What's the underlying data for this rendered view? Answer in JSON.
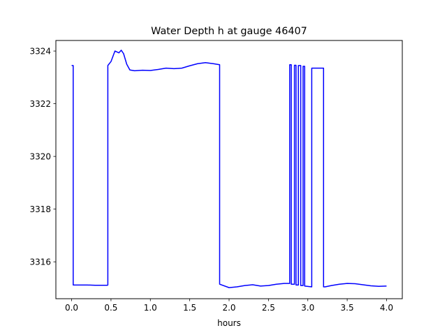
{
  "chart_data": {
    "type": "line",
    "title": "Water Depth h at gauge 46407",
    "xlabel": "hours",
    "ylabel": "",
    "xlim": [
      -0.2,
      4.2
    ],
    "ylim": [
      3314.6,
      3324.4
    ],
    "xticks": [
      0.0,
      0.5,
      1.0,
      1.5,
      2.0,
      2.5,
      3.0,
      3.5,
      4.0
    ],
    "xtick_labels": [
      "0.0",
      "0.5",
      "1.0",
      "1.5",
      "2.0",
      "2.5",
      "3.0",
      "3.5",
      "4.0"
    ],
    "yticks": [
      3316,
      3318,
      3320,
      3322,
      3324
    ],
    "ytick_labels": [
      "3316",
      "3318",
      "3320",
      "3322",
      "3324"
    ],
    "grid": false,
    "series": [
      {
        "color": "#0000ff",
        "x": [
          0.0,
          0.02,
          0.02,
          0.1,
          0.2,
          0.3,
          0.4,
          0.45,
          0.46,
          0.46,
          0.5,
          0.55,
          0.6,
          0.63,
          0.66,
          0.7,
          0.74,
          0.8,
          0.9,
          1.0,
          1.1,
          1.2,
          1.3,
          1.4,
          1.5,
          1.6,
          1.7,
          1.8,
          1.88,
          1.88,
          2.0,
          2.1,
          2.2,
          2.3,
          2.4,
          2.5,
          2.6,
          2.7,
          2.77,
          2.77,
          2.79,
          2.79,
          2.83,
          2.83,
          2.85,
          2.85,
          2.88,
          2.88,
          2.91,
          2.91,
          2.94,
          2.94,
          2.96,
          2.96,
          3.05,
          3.05,
          3.2,
          3.2,
          3.22,
          3.3,
          3.4,
          3.5,
          3.6,
          3.7,
          3.8,
          3.9,
          4.0
        ],
        "y": [
          3323.45,
          3323.45,
          3315.12,
          3315.12,
          3315.12,
          3315.11,
          3315.11,
          3315.11,
          3315.12,
          3323.45,
          3323.6,
          3324.0,
          3323.93,
          3324.03,
          3323.9,
          3323.5,
          3323.28,
          3323.25,
          3323.27,
          3323.26,
          3323.3,
          3323.35,
          3323.33,
          3323.35,
          3323.44,
          3323.52,
          3323.56,
          3323.52,
          3323.48,
          3315.15,
          3315.02,
          3315.05,
          3315.1,
          3315.13,
          3315.08,
          3315.1,
          3315.15,
          3315.18,
          3315.18,
          3323.48,
          3323.48,
          3315.15,
          3315.15,
          3323.46,
          3323.46,
          3315.12,
          3315.12,
          3323.45,
          3323.45,
          3315.1,
          3315.1,
          3323.42,
          3323.42,
          3315.08,
          3315.05,
          3323.35,
          3323.35,
          3315.05,
          3315.05,
          3315.1,
          3315.15,
          3315.18,
          3315.17,
          3315.13,
          3315.09,
          3315.07,
          3315.08
        ]
      }
    ]
  }
}
